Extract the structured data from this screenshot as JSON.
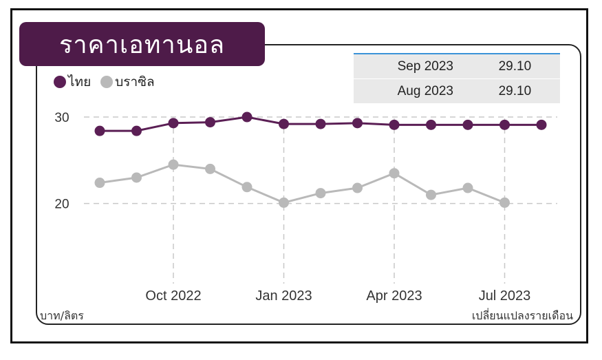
{
  "title": "ราคาเอทานอล",
  "legend": [
    {
      "label": "ไทย",
      "color": "#5b1f55"
    },
    {
      "label": "บราซิล",
      "color": "#b9b9b9"
    }
  ],
  "info_table": [
    {
      "month": "Sep 2023",
      "value": "29.10"
    },
    {
      "month": "Aug 2023",
      "value": "29.10"
    }
  ],
  "footer": {
    "unit": "บาท/ลิตร",
    "change": "เปลี่ยนแปลงรายเดือน"
  },
  "chart_data": {
    "type": "line",
    "ylim": [
      10.5,
      30.8
    ],
    "yticks": [
      20,
      30
    ],
    "x_tick_labels": [
      {
        "index": 2,
        "label": "Oct 2022"
      },
      {
        "index": 5,
        "label": "Jan 2023"
      },
      {
        "index": 8,
        "label": "Apr 2023"
      },
      {
        "index": 11,
        "label": "Jul 2023"
      }
    ],
    "x": [
      "Aug 2022",
      "Sep 2022",
      "Oct 2022",
      "Nov 2022",
      "Dec 2022",
      "Jan 2023",
      "Feb 2023",
      "Mar 2023",
      "Apr 2023",
      "May 2023",
      "Jun 2023",
      "Jul 2023",
      "Aug 2023"
    ],
    "series": [
      {
        "name": "ไทย",
        "color": "#5b1f55",
        "values": [
          28.4,
          28.4,
          29.3,
          29.4,
          30.0,
          29.2,
          29.2,
          29.3,
          29.1,
          29.1,
          29.1,
          29.1,
          29.1
        ]
      },
      {
        "name": "บราซิล",
        "color": "#b9b9b9",
        "values": [
          22.4,
          23.0,
          24.5,
          24.0,
          21.9,
          20.1,
          21.2,
          21.8,
          23.5,
          21.0,
          21.8,
          20.1,
          null
        ]
      }
    ],
    "grid": "dashed"
  }
}
